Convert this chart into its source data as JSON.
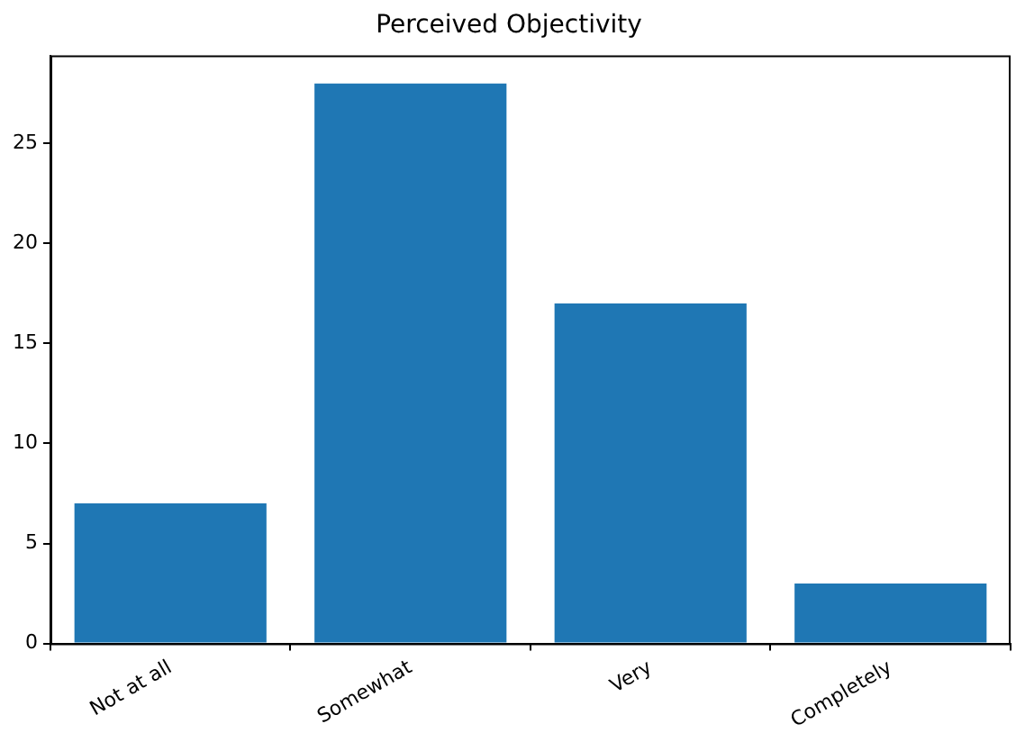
{
  "chart_data": {
    "type": "bar",
    "title": "Perceived Objectivity",
    "categories": [
      "Not at all",
      "Somewhat",
      "Very",
      "Completely"
    ],
    "values": [
      7,
      28,
      17,
      3
    ],
    "color": "#1f77b4",
    "ylim": [
      0,
      29.4
    ],
    "yticks": [
      0,
      5,
      10,
      15,
      20,
      25
    ],
    "grid": false
  }
}
